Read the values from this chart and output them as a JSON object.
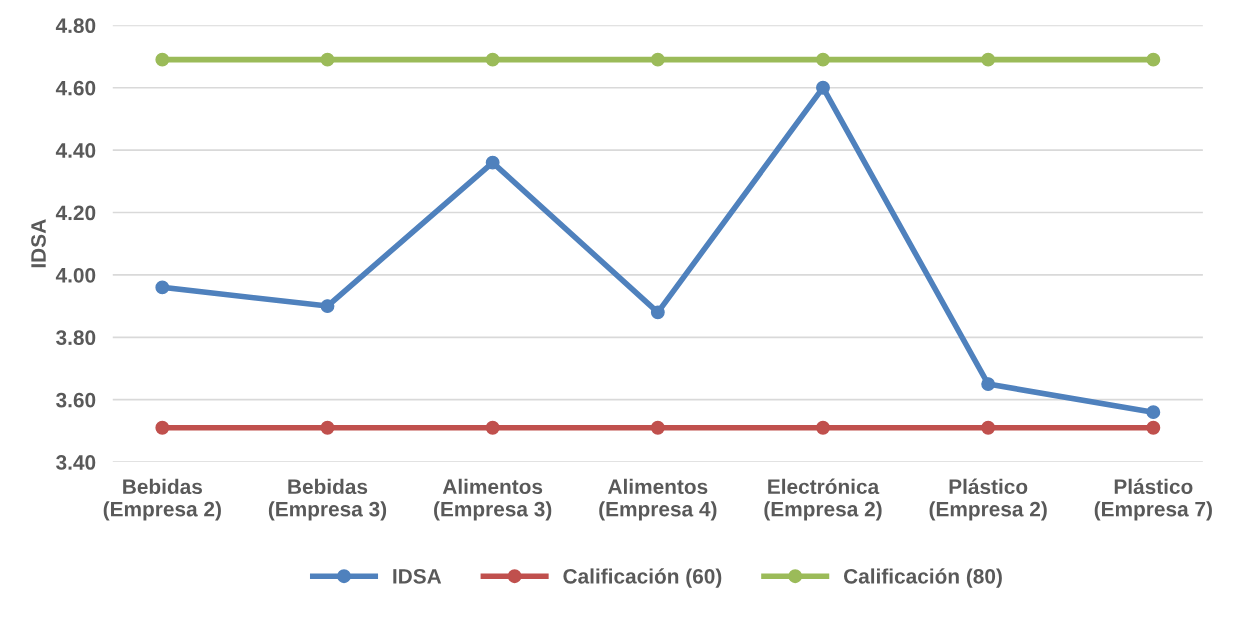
{
  "chart_data": {
    "type": "line",
    "ylabel": "IDSA",
    "categories": [
      "Bebidas\n(Empresa 2)",
      "Bebidas\n(Empresa 3)",
      "Alimentos\n(Empresa 3)",
      "Alimentos\n(Empresa 4)",
      "Electrónica\n(Empresa 2)",
      "Plástico\n(Empresa 2)",
      "Plástico\n(Empresa 7)"
    ],
    "series": [
      {
        "name": "IDSA",
        "color": "#4f81bd",
        "values": [
          3.96,
          3.9,
          4.36,
          3.88,
          4.6,
          3.65,
          3.56
        ]
      },
      {
        "name": "Calificación (60)",
        "color": "#c0504d",
        "values": [
          3.51,
          3.51,
          3.51,
          3.51,
          3.51,
          3.51,
          3.51
        ]
      },
      {
        "name": "Calificación (80)",
        "color": "#9bbb59",
        "values": [
          4.69,
          4.69,
          4.69,
          4.69,
          4.69,
          4.69,
          4.69
        ]
      }
    ],
    "ylim": [
      3.4,
      4.8
    ],
    "yticks": [
      {
        "value": 3.4,
        "label": "3.40"
      },
      {
        "value": 3.6,
        "label": "3.60"
      },
      {
        "value": 3.8,
        "label": "3.80"
      },
      {
        "value": 4.0,
        "label": "4.00"
      },
      {
        "value": 4.2,
        "label": "4.20"
      },
      {
        "value": 4.4,
        "label": "4.40"
      },
      {
        "value": 4.6,
        "label": "4.60"
      },
      {
        "value": 4.8,
        "label": "4.80"
      }
    ],
    "grid": "y",
    "legend": "bottom",
    "marker": "circle",
    "line_style": "solid"
  }
}
